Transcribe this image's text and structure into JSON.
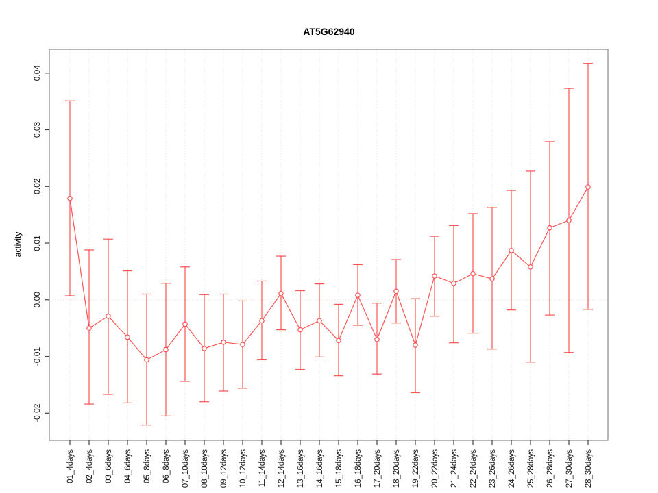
{
  "title": "AT5G62940",
  "chart_data": {
    "type": "line",
    "title": "AT5G62940",
    "xlabel": "",
    "ylabel": "activity",
    "legend": "none",
    "grid": "vertical dotted gridlines at each category; dotted horizontal line at y=0",
    "marker": "open-circle",
    "error_bars": true,
    "ylim": [
      -0.0248,
      0.0442
    ],
    "ytick_values": [
      0.04,
      0.03,
      0.02,
      0.01,
      0.0,
      -0.01,
      -0.02
    ],
    "ytick_labels": [
      "0.04",
      "0.03",
      "0.02",
      "0.01",
      "0.00",
      "-0.01",
      "-0.02"
    ],
    "categories": [
      "01_4days",
      "02_4days",
      "03_6days",
      "04_6days",
      "05_8days",
      "06_8days",
      "07_10days",
      "08_10days",
      "09_12days",
      "10_12days",
      "11_14days",
      "12_14days",
      "13_16days",
      "14_16days",
      "15_18days",
      "16_18days",
      "17_20days",
      "18_20days",
      "19_22days",
      "20_22days",
      "21_24days",
      "22_24days",
      "23_26days",
      "24_26days",
      "25_28days",
      "26_28days",
      "27_30days",
      "28_30days"
    ],
    "series": [
      {
        "name": "activity",
        "values": [
          0.0179,
          -0.005,
          -0.0029,
          -0.0066,
          -0.0106,
          -0.0088,
          -0.0043,
          -0.0086,
          -0.0075,
          -0.0079,
          -0.0037,
          0.0011,
          -0.0053,
          -0.0037,
          -0.0072,
          0.0008,
          -0.007,
          0.0015,
          -0.008,
          0.0042,
          0.0029,
          0.0046,
          0.0037,
          0.0087,
          0.0058,
          0.0127,
          0.014,
          0.0199
        ],
        "error_low": [
          0.0007,
          -0.0184,
          -0.0167,
          -0.0182,
          -0.0221,
          -0.0205,
          -0.0144,
          -0.018,
          -0.0161,
          -0.0156,
          -0.0106,
          -0.0053,
          -0.0123,
          -0.0101,
          -0.0134,
          -0.0045,
          -0.0131,
          -0.0041,
          -0.0164,
          -0.0029,
          -0.0076,
          -0.0059,
          -0.0087,
          -0.0018,
          -0.011,
          -0.0027,
          -0.0093,
          -0.0017
        ],
        "error_high": [
          0.0351,
          0.0088,
          0.0107,
          0.0051,
          0.001,
          0.0029,
          0.0058,
          0.0009,
          0.001,
          -0.0002,
          0.0033,
          0.0077,
          0.0016,
          0.0028,
          -0.0008,
          0.0062,
          -0.0006,
          0.0071,
          0.0002,
          0.0112,
          0.0131,
          0.0152,
          0.0163,
          0.0193,
          0.0227,
          0.0279,
          0.0373,
          0.0417
        ]
      }
    ],
    "colors": {
      "series": "#ff5252",
      "grid": "#dfdfdf",
      "zero_line": "#e4e4e4",
      "frame": "#878787",
      "ticks": "#404040",
      "text": "#1a1a1a"
    }
  }
}
